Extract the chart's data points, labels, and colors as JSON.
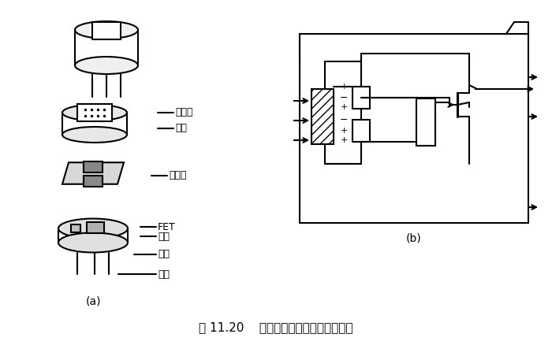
{
  "title": "图 11.20    热释电人体红外传感器的结构",
  "label_a": "(a)",
  "label_b": "(b)",
  "bg_color": "#ffffff",
  "text_color": "#000000",
  "labels": {
    "filter": "滤光片",
    "cap": "管帽",
    "element": "敏感元",
    "fet": "FET",
    "socket": "管座",
    "resistor": "高阻",
    "lead": "引线"
  },
  "font_size_label": 9,
  "font_size_title": 11
}
